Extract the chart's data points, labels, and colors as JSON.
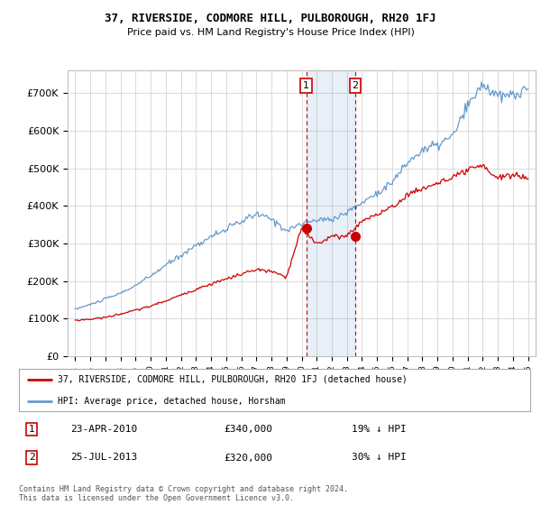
{
  "title": "37, RIVERSIDE, CODMORE HILL, PULBOROUGH, RH20 1FJ",
  "subtitle": "Price paid vs. HM Land Registry's House Price Index (HPI)",
  "ylabel_ticks": [
    "£0",
    "£100K",
    "£200K",
    "£300K",
    "£400K",
    "£500K",
    "£600K",
    "£700K"
  ],
  "ytick_values": [
    0,
    100000,
    200000,
    300000,
    400000,
    500000,
    600000,
    700000
  ],
  "ylim": [
    0,
    760000
  ],
  "red_line_color": "#cc0000",
  "blue_line_color": "#6699cc",
  "blue_fill_color": "#ddeeff",
  "marker1_year": 2010.3,
  "marker2_year": 2013.55,
  "marker1_price": 340000,
  "marker2_price": 320000,
  "marker1_label": "1",
  "marker2_label": "2",
  "marker1_date": "23-APR-2010",
  "marker1_amount": "£340,000",
  "marker1_hpi": "19% ↓ HPI",
  "marker2_date": "25-JUL-2013",
  "marker2_amount": "£320,000",
  "marker2_hpi": "30% ↓ HPI",
  "legend_line1": "37, RIVERSIDE, CODMORE HILL, PULBOROUGH, RH20 1FJ (detached house)",
  "legend_line2": "HPI: Average price, detached house, Horsham",
  "footnote": "Contains HM Land Registry data © Crown copyright and database right 2024.\nThis data is licensed under the Open Government Licence v3.0.",
  "background_color": "#ffffff",
  "grid_color": "#cccccc",
  "xlim_left": 1994.5,
  "xlim_right": 2025.5
}
